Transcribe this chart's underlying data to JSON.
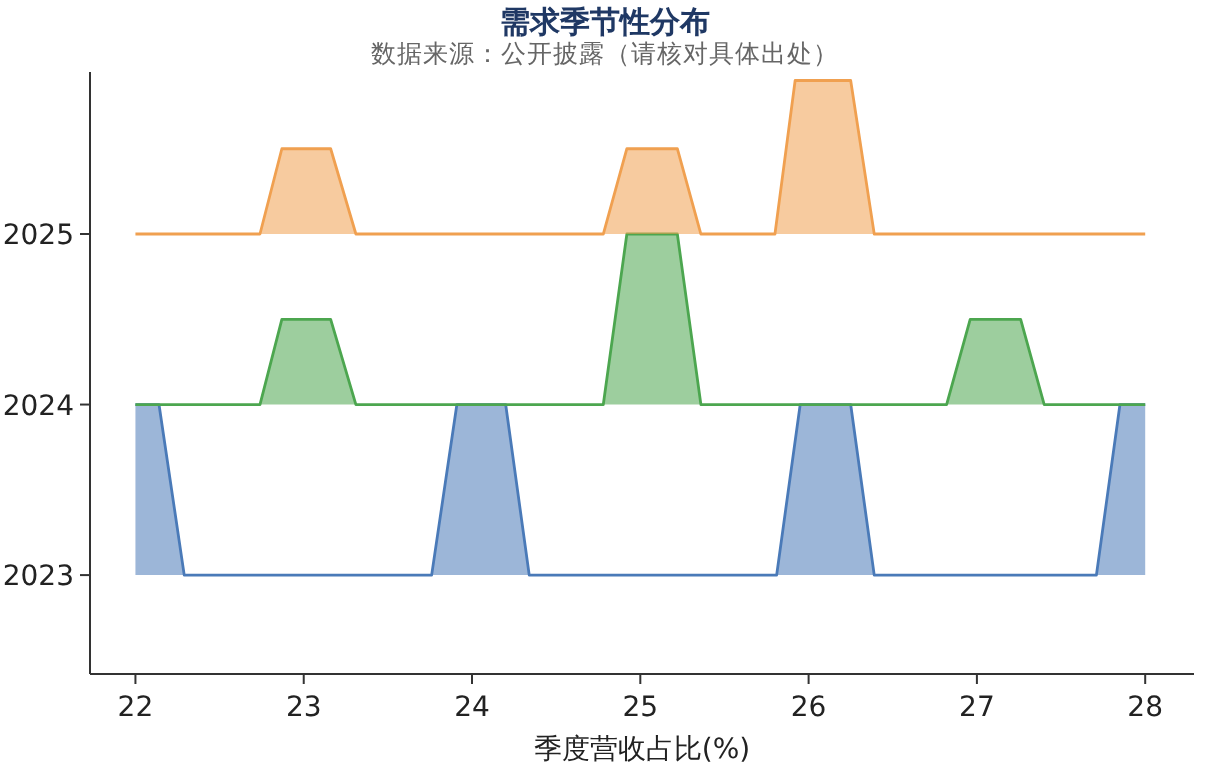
{
  "chart_data": {
    "type": "area",
    "title": "需求季节性分布",
    "subtitle": "数据来源：公开披露（请核对具体出处）",
    "xlabel": "季度营收占比(%)",
    "xlim": [
      21.73,
      28.29
    ],
    "xticks": [
      22,
      23,
      24,
      25,
      26,
      27,
      28
    ],
    "ylim": [
      2022.42,
      2025.95
    ],
    "yticks": [
      2023,
      2024,
      2025
    ],
    "grid": false,
    "series": [
      {
        "color": "#4a7ab8",
        "x": [
          22,
          22.14,
          22.29,
          23.76,
          23.91,
          24.2,
          24.34,
          25.81,
          25.95,
          26.25,
          26.39,
          27.71,
          27.85,
          28
        ],
        "values": [
          2024,
          2024,
          2023,
          2023,
          2024,
          2024,
          2023,
          2023,
          2024,
          2024,
          2023,
          2023,
          2024,
          2024
        ]
      },
      {
        "color": "#4ca64f",
        "x": [
          22,
          22.74,
          22.87,
          23.16,
          23.31,
          24.78,
          24.92,
          25.22,
          25.36,
          26.82,
          26.96,
          27.26,
          27.4,
          28
        ],
        "values": [
          2024,
          2024,
          2024.5,
          2024.5,
          2024,
          2024,
          2025,
          2025,
          2024,
          2024,
          2024.5,
          2024.5,
          2024,
          2024
        ]
      },
      {
        "color": "#f0a050",
        "x": [
          22,
          22.74,
          22.87,
          23.16,
          23.31,
          24.78,
          24.92,
          25.22,
          25.36,
          25.8,
          25.92,
          26.25,
          26.39,
          28
        ],
        "values": [
          2025,
          2025,
          2025.5,
          2025.5,
          2025,
          2025,
          2025.5,
          2025.5,
          2025,
          2025,
          2025.9,
          2025.9,
          2025,
          2025
        ]
      }
    ]
  }
}
